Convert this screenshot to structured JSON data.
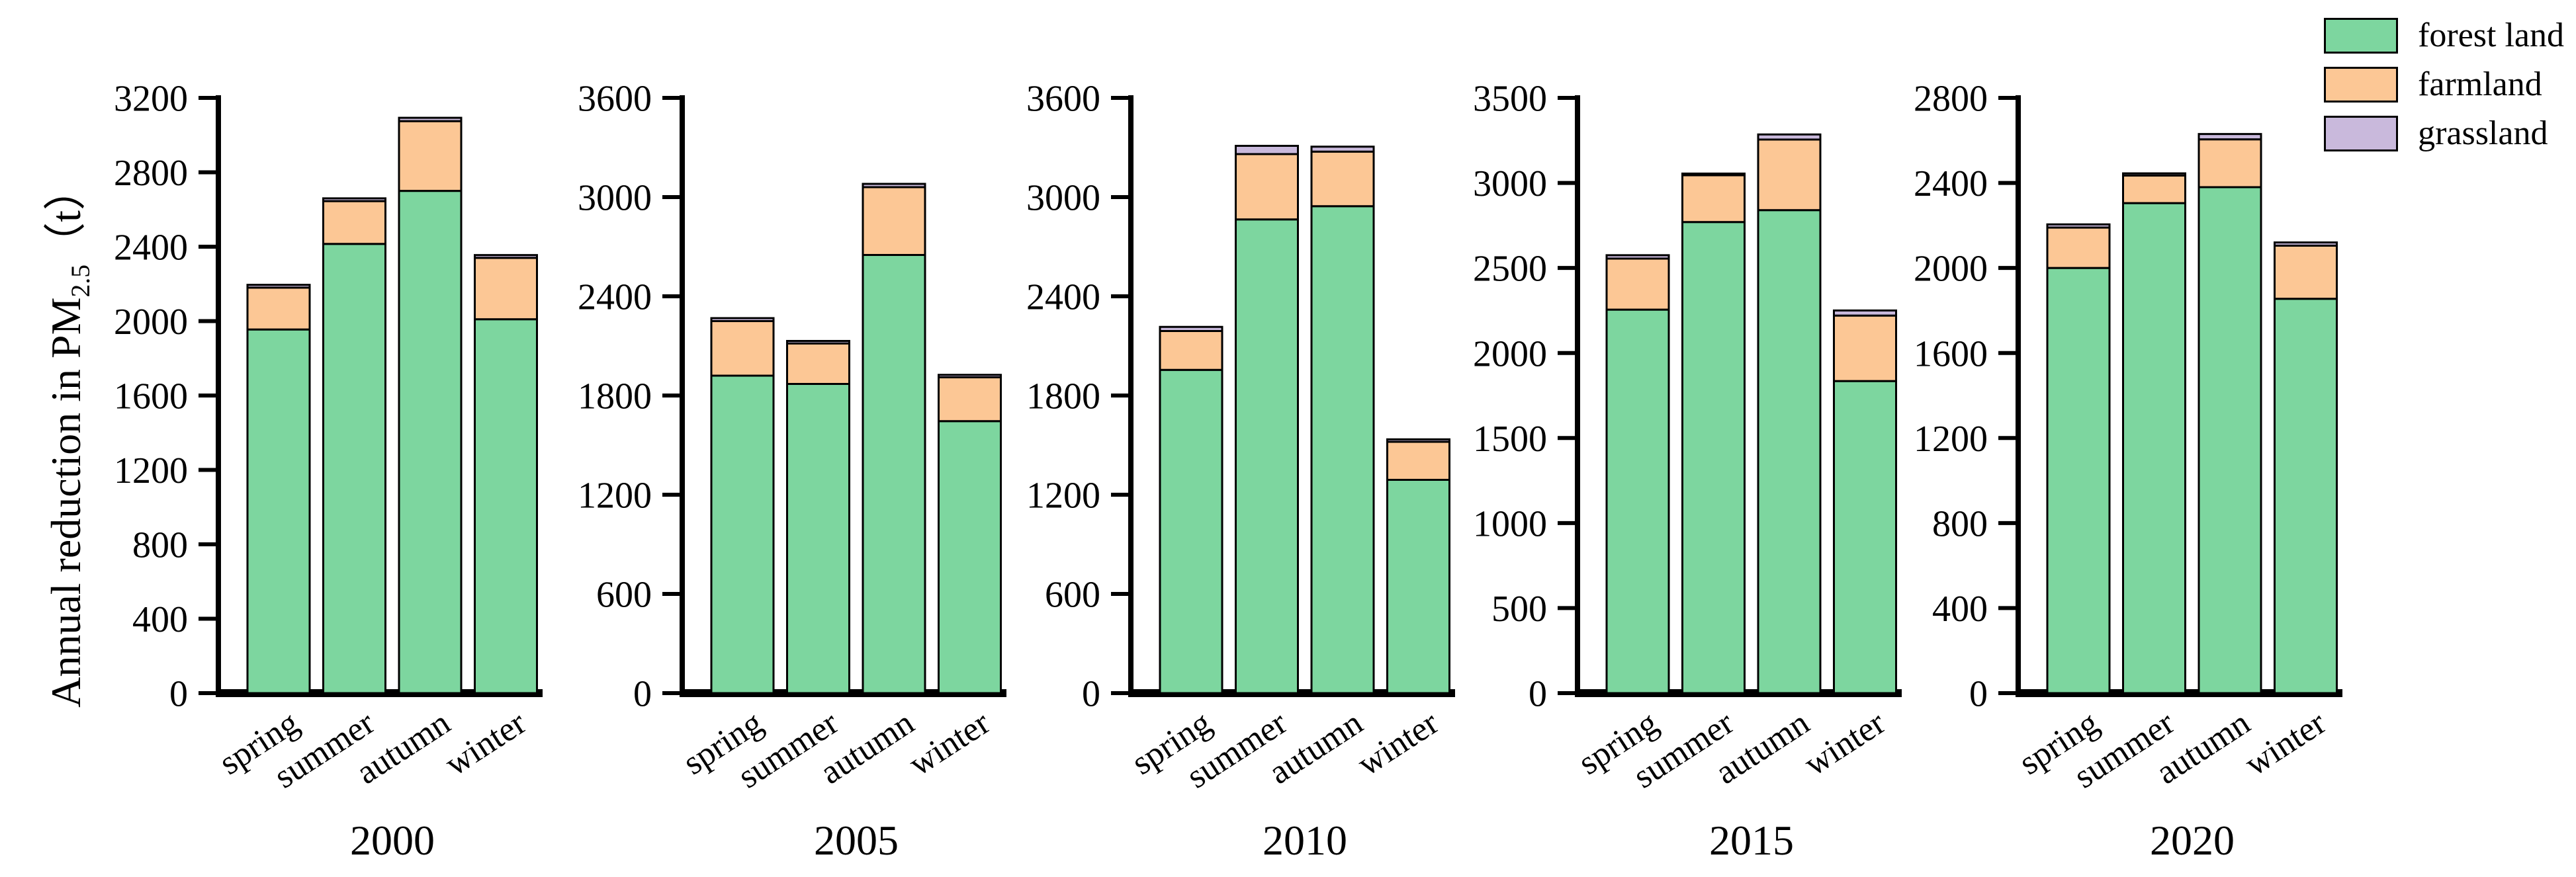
{
  "y_axis_title": {
    "main": "Annual reduction in PM",
    "subscript": "2.5",
    "unit": "（t）"
  },
  "legend": {
    "items": [
      {
        "label": "forest land",
        "color": "#7DD69F"
      },
      {
        "label": "farmland",
        "color": "#FCC795"
      },
      {
        "label": "grassland",
        "color": "#C9B9DC"
      }
    ]
  },
  "colors": {
    "axis": "#000000",
    "bar_outline": "#000000",
    "background": "#ffffff"
  },
  "chart_data": [
    {
      "type": "bar",
      "stacked": true,
      "year": "2000",
      "categories": [
        "spring",
        "summer",
        "autumn",
        "winter"
      ],
      "series": [
        {
          "name": "forest land",
          "values": [
            1955,
            2415,
            2700,
            2010
          ]
        },
        {
          "name": "farmland",
          "values": [
            225,
            230,
            375,
            330
          ]
        },
        {
          "name": "grassland",
          "values": [
            15,
            15,
            18,
            15
          ]
        }
      ],
      "ylim": [
        0,
        3200
      ],
      "yticks": [
        0,
        400,
        800,
        1200,
        1600,
        2000,
        2400,
        2800,
        3200
      ],
      "grid": false
    },
    {
      "type": "bar",
      "stacked": true,
      "year": "2005",
      "categories": [
        "spring",
        "summer",
        "autumn",
        "winter"
      ],
      "series": [
        {
          "name": "forest land",
          "values": [
            1920,
            1870,
            2650,
            1645
          ]
        },
        {
          "name": "farmland",
          "values": [
            330,
            245,
            410,
            265
          ]
        },
        {
          "name": "grassland",
          "values": [
            18,
            15,
            20,
            15
          ]
        }
      ],
      "ylim": [
        0,
        3600
      ],
      "yticks": [
        0,
        600,
        1200,
        1800,
        2400,
        3000,
        3600
      ],
      "grid": false
    },
    {
      "type": "bar",
      "stacked": true,
      "year": "2010",
      "categories": [
        "spring",
        "summer",
        "autumn",
        "winter"
      ],
      "series": [
        {
          "name": "forest land",
          "values": [
            1955,
            2865,
            2945,
            1290
          ]
        },
        {
          "name": "farmland",
          "values": [
            235,
            395,
            330,
            230
          ]
        },
        {
          "name": "grassland",
          "values": [
            25,
            50,
            30,
            15
          ]
        }
      ],
      "ylim": [
        0,
        3600
      ],
      "yticks": [
        0,
        600,
        1200,
        1800,
        2400,
        3000,
        3600
      ],
      "grid": false
    },
    {
      "type": "bar",
      "stacked": true,
      "year": "2015",
      "categories": [
        "spring",
        "summer",
        "autumn",
        "winter"
      ],
      "series": [
        {
          "name": "forest land",
          "values": [
            2255,
            2770,
            2840,
            1835
          ]
        },
        {
          "name": "farmland",
          "values": [
            300,
            275,
            415,
            385
          ]
        },
        {
          "name": "grassland",
          "values": [
            20,
            10,
            30,
            30
          ]
        }
      ],
      "ylim": [
        0,
        3500
      ],
      "yticks": [
        0,
        500,
        1000,
        1500,
        2000,
        2500,
        3000,
        3500
      ],
      "grid": false
    },
    {
      "type": "bar",
      "stacked": true,
      "year": "2020",
      "categories": [
        "spring",
        "summer",
        "autumn",
        "winter"
      ],
      "series": [
        {
          "name": "forest land",
          "values": [
            2000,
            2305,
            2380,
            1855
          ]
        },
        {
          "name": "farmland",
          "values": [
            190,
            130,
            225,
            250
          ]
        },
        {
          "name": "grassland",
          "values": [
            15,
            10,
            25,
            15
          ]
        }
      ],
      "ylim": [
        0,
        2800
      ],
      "yticks": [
        0,
        400,
        800,
        1200,
        1600,
        2000,
        2400,
        2800
      ],
      "grid": false
    }
  ]
}
